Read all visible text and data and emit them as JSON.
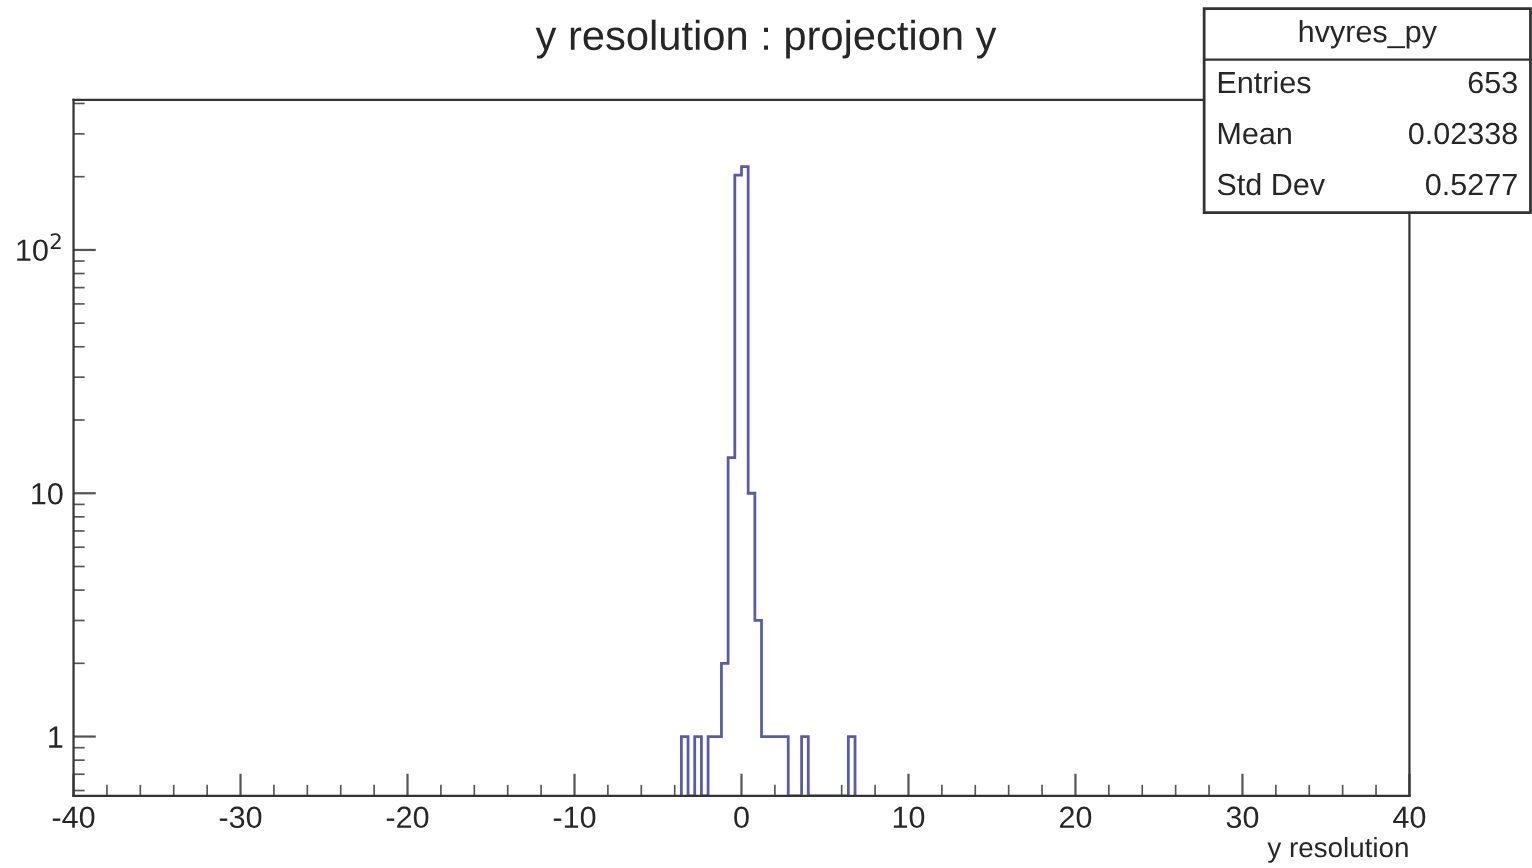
{
  "chart_data": {
    "type": "histogram",
    "title": "y resolution : projection y",
    "xlabel": "y resolution",
    "bins": [
      -3.6,
      -3.2,
      -2.8,
      -2.4,
      -2.0,
      -1.6,
      -1.2,
      -0.8,
      -0.4,
      0,
      0.4,
      0.8,
      1.2,
      1.6,
      2.0,
      2.4,
      2.8,
      3.2,
      3.6,
      4.0,
      4.4,
      4.8,
      5.2,
      5.6,
      6.0,
      6.4,
      6.8
    ],
    "values": [
      1,
      null,
      1,
      null,
      1,
      1,
      2,
      14,
      203,
      220,
      10,
      3,
      1,
      1,
      1,
      1,
      null,
      null,
      1,
      null,
      null,
      null,
      null,
      null,
      null,
      1
    ],
    "color": "#5a5aa8",
    "log": "y",
    "grid": false,
    "xlim": [
      -40,
      40
    ],
    "xticks": [
      -40,
      -30,
      -20,
      -10,
      0,
      10,
      20,
      30,
      40
    ],
    "ylim": [
      0.57,
      414
    ],
    "yticks": [
      1,
      10,
      {
        "value": 100,
        "label": "10$^{2}$"
      }
    ],
    "annotations": [
      "hvyres_py",
      "Entries",
      "653",
      "Mean",
      "0.02338",
      "Std Dev",
      "0.5277"
    ]
  }
}
